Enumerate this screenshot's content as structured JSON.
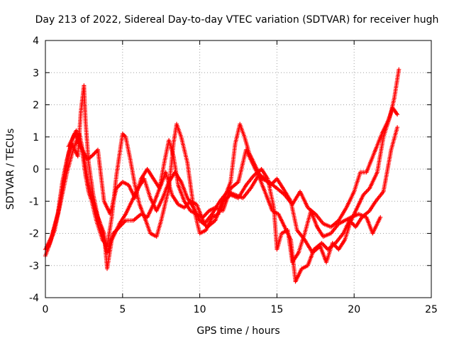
{
  "chart_data": {
    "type": "scatter",
    "title": "Day 213 of 2022, Sidereal Day-to-day VTEC variation (SDTVAR) for receiver hugh",
    "xlabel": "GPS time / hours",
    "ylabel": "SDTVAR / TECUs",
    "xlim": [
      0,
      25
    ],
    "ylim": [
      -4,
      4
    ],
    "xticks": [
      "0",
      "5",
      "10",
      "15",
      "20",
      "25"
    ],
    "yticks": [
      "-4",
      "-3",
      "-2",
      "-1",
      "0",
      "1",
      "2",
      "3",
      "4"
    ],
    "grid": true,
    "marker": "+",
    "series": [
      {
        "name": "SDTVAR",
        "color": "#ff0000",
        "tracks": [
          [
            [
              0.0,
              -2.7
            ],
            [
              0.3,
              -2.3
            ],
            [
              0.6,
              -1.8
            ],
            [
              0.9,
              -1.2
            ],
            [
              1.2,
              -0.3
            ],
            [
              1.5,
              0.5
            ],
            [
              1.8,
              1.0
            ],
            [
              2.0,
              1.2
            ],
            [
              2.2,
              0.9
            ],
            [
              2.4,
              0.5
            ],
            [
              2.6,
              -0.2
            ],
            [
              2.8,
              -0.7
            ],
            [
              3.0,
              -1.0
            ],
            [
              3.3,
              -1.6
            ],
            [
              3.7,
              -2.2
            ],
            [
              4.0,
              -2.4
            ],
            [
              4.3,
              -1.5
            ],
            [
              4.6,
              -0.2
            ],
            [
              5.0,
              1.1
            ],
            [
              5.2,
              1.0
            ],
            [
              5.5,
              0.3
            ],
            [
              5.8,
              -0.5
            ],
            [
              6.1,
              -1.1
            ],
            [
              6.5,
              -1.6
            ],
            [
              6.8,
              -2.0
            ],
            [
              7.2,
              -2.1
            ],
            [
              7.5,
              -1.6
            ],
            [
              8.0,
              -0.6
            ],
            [
              8.3,
              0.8
            ],
            [
              8.5,
              1.4
            ],
            [
              8.8,
              1.0
            ],
            [
              9.2,
              0.2
            ],
            [
              9.6,
              -1.2
            ],
            [
              10.0,
              -2.0
            ],
            [
              10.4,
              -1.9
            ],
            [
              10.8,
              -1.5
            ],
            [
              11.2,
              -1.4
            ],
            [
              11.6,
              -0.9
            ],
            [
              12.0,
              -0.4
            ],
            [
              12.3,
              0.8
            ],
            [
              12.6,
              1.4
            ],
            [
              12.9,
              1.0
            ],
            [
              13.2,
              0.5
            ],
            [
              13.6,
              0.1
            ],
            [
              14.0,
              -0.3
            ],
            [
              14.5,
              -0.4
            ],
            [
              15.0,
              -0.6
            ],
            [
              15.5,
              -0.8
            ],
            [
              16.0,
              -1.1
            ],
            [
              16.5,
              -0.7
            ],
            [
              17.0,
              -1.2
            ],
            [
              17.5,
              -1.4
            ],
            [
              18.0,
              -1.7
            ],
            [
              18.5,
              -1.8
            ],
            [
              19.0,
              -1.6
            ],
            [
              19.5,
              -1.2
            ],
            [
              20.0,
              -0.7
            ],
            [
              20.4,
              -0.1
            ],
            [
              20.8,
              -0.1
            ],
            [
              21.3,
              0.5
            ],
            [
              21.8,
              1.1
            ],
            [
              22.2,
              1.5
            ],
            [
              22.5,
              1.9
            ],
            [
              22.8,
              1.7
            ]
          ],
          [
            [
              0.0,
              -2.5
            ],
            [
              0.4,
              -2.1
            ],
            [
              0.8,
              -1.4
            ],
            [
              1.1,
              -0.4
            ],
            [
              1.4,
              0.3
            ],
            [
              1.7,
              0.8
            ],
            [
              2.1,
              0.4
            ],
            [
              2.3,
              1.8
            ],
            [
              2.5,
              2.6
            ],
            [
              2.6,
              1.5
            ],
            [
              2.8,
              0.2
            ],
            [
              3.1,
              -0.8
            ],
            [
              3.4,
              -1.5
            ],
            [
              3.8,
              -2.0
            ],
            [
              4.0,
              -3.1
            ],
            [
              4.3,
              -2.2
            ],
            [
              4.8,
              -1.7
            ],
            [
              5.2,
              -1.4
            ],
            [
              5.6,
              -1.0
            ],
            [
              6.0,
              -0.6
            ],
            [
              6.4,
              -0.3
            ],
            [
              6.8,
              -0.9
            ],
            [
              7.2,
              -1.3
            ],
            [
              7.6,
              -0.9
            ],
            [
              8.0,
              -0.4
            ],
            [
              8.4,
              -0.1
            ],
            [
              8.8,
              -0.4
            ],
            [
              9.2,
              -0.9
            ],
            [
              9.6,
              -1.2
            ],
            [
              10.0,
              -1.6
            ],
            [
              10.5,
              -1.8
            ],
            [
              11.0,
              -1.6
            ],
            [
              11.5,
              -1.0
            ],
            [
              12.0,
              -0.8
            ],
            [
              12.5,
              -0.9
            ],
            [
              13.0,
              -0.5
            ],
            [
              13.5,
              -0.2
            ],
            [
              14.0,
              0.0
            ],
            [
              14.4,
              -0.3
            ],
            [
              14.8,
              -1.2
            ],
            [
              15.0,
              -2.5
            ],
            [
              15.3,
              -2.0
            ],
            [
              15.7,
              -1.9
            ],
            [
              16.0,
              -2.9
            ],
            [
              16.4,
              -2.6
            ],
            [
              16.8,
              -2.0
            ],
            [
              17.2,
              -1.3
            ],
            [
              17.6,
              -1.8
            ],
            [
              18.0,
              -2.1
            ],
            [
              18.5,
              -2.0
            ],
            [
              19.0,
              -1.7
            ],
            [
              19.4,
              -1.6
            ],
            [
              19.8,
              -1.5
            ],
            [
              20.3,
              -1.4
            ],
            [
              20.8,
              -1.5
            ],
            [
              21.2,
              -2.0
            ],
            [
              21.7,
              -1.5
            ]
          ],
          [
            [
              1.5,
              0.7
            ],
            [
              1.9,
              1.1
            ],
            [
              2.3,
              0.7
            ],
            [
              2.7,
              0.3
            ],
            [
              3.0,
              0.4
            ],
            [
              3.4,
              0.6
            ],
            [
              3.6,
              -0.2
            ],
            [
              3.8,
              -1.0
            ],
            [
              4.2,
              -1.4
            ],
            [
              4.6,
              -0.6
            ],
            [
              5.0,
              -0.4
            ],
            [
              5.4,
              -0.5
            ],
            [
              5.8,
              -0.9
            ],
            [
              6.2,
              -0.3
            ],
            [
              6.6,
              0.0
            ],
            [
              7.0,
              -0.3
            ],
            [
              7.4,
              -0.6
            ],
            [
              7.7,
              0.2
            ],
            [
              8.0,
              0.9
            ],
            [
              8.3,
              0.4
            ],
            [
              8.6,
              -0.5
            ],
            [
              9.0,
              -1.0
            ],
            [
              9.4,
              -1.3
            ],
            [
              9.8,
              -1.4
            ],
            [
              10.2,
              -1.5
            ],
            [
              10.6,
              -1.3
            ],
            [
              11.0,
              -1.2
            ],
            [
              11.5,
              -1.3
            ],
            [
              12.0,
              -0.6
            ],
            [
              12.5,
              -0.4
            ],
            [
              13.0,
              0.6
            ],
            [
              13.3,
              0.3
            ],
            [
              13.7,
              -0.1
            ],
            [
              14.2,
              -0.3
            ],
            [
              14.6,
              -0.5
            ],
            [
              15.0,
              -0.3
            ],
            [
              15.4,
              -0.6
            ],
            [
              15.9,
              -1.0
            ],
            [
              16.3,
              -1.9
            ],
            [
              16.8,
              -2.2
            ],
            [
              17.3,
              -2.6
            ],
            [
              17.8,
              -2.4
            ],
            [
              18.2,
              -2.9
            ],
            [
              18.6,
              -2.3
            ],
            [
              19.0,
              -2.5
            ],
            [
              19.4,
              -2.2
            ],
            [
              19.8,
              -1.6
            ],
            [
              20.2,
              -1.2
            ],
            [
              20.6,
              -0.8
            ],
            [
              21.0,
              -0.6
            ],
            [
              21.5,
              -0.1
            ],
            [
              21.9,
              1.0
            ],
            [
              22.3,
              1.6
            ],
            [
              22.6,
              2.2
            ],
            [
              22.9,
              3.1
            ]
          ],
          [
            [
              0.2,
              -2.4
            ],
            [
              0.6,
              -1.9
            ],
            [
              1.0,
              -1.0
            ],
            [
              1.4,
              -0.1
            ],
            [
              1.8,
              0.6
            ],
            [
              2.2,
              1.1
            ],
            [
              2.5,
              0.4
            ],
            [
              2.8,
              -0.5
            ],
            [
              3.2,
              -1.2
            ],
            [
              3.6,
              -1.8
            ],
            [
              4.0,
              -2.6
            ],
            [
              4.4,
              -2.0
            ],
            [
              4.8,
              -1.8
            ],
            [
              5.2,
              -1.6
            ],
            [
              5.7,
              -1.6
            ],
            [
              6.2,
              -1.4
            ],
            [
              6.6,
              -1.5
            ],
            [
              7.0,
              -1.1
            ],
            [
              7.4,
              -0.6
            ],
            [
              7.8,
              -0.1
            ],
            [
              8.2,
              -0.8
            ],
            [
              8.6,
              -1.1
            ],
            [
              9.0,
              -1.2
            ],
            [
              9.4,
              -1.0
            ],
            [
              9.8,
              -1.1
            ],
            [
              10.3,
              -1.7
            ],
            [
              10.8,
              -1.4
            ],
            [
              11.3,
              -1.0
            ],
            [
              11.8,
              -0.7
            ],
            [
              12.3,
              -0.8
            ],
            [
              12.8,
              -0.9
            ],
            [
              13.3,
              -0.6
            ],
            [
              13.8,
              -0.2
            ],
            [
              14.3,
              -0.8
            ],
            [
              14.7,
              -1.3
            ],
            [
              15.1,
              -1.4
            ],
            [
              15.5,
              -1.8
            ],
            [
              15.9,
              -2.2
            ],
            [
              16.2,
              -3.5
            ],
            [
              16.6,
              -3.1
            ],
            [
              17.0,
              -3.0
            ],
            [
              17.4,
              -2.5
            ],
            [
              17.9,
              -2.3
            ],
            [
              18.3,
              -2.5
            ],
            [
              18.8,
              -2.3
            ],
            [
              19.3,
              -2.0
            ],
            [
              19.7,
              -1.6
            ],
            [
              20.1,
              -1.8
            ],
            [
              20.5,
              -1.5
            ],
            [
              21.0,
              -1.3
            ],
            [
              21.4,
              -1.0
            ],
            [
              21.9,
              -0.7
            ],
            [
              22.4,
              0.6
            ],
            [
              22.8,
              1.3
            ]
          ]
        ]
      }
    ]
  }
}
